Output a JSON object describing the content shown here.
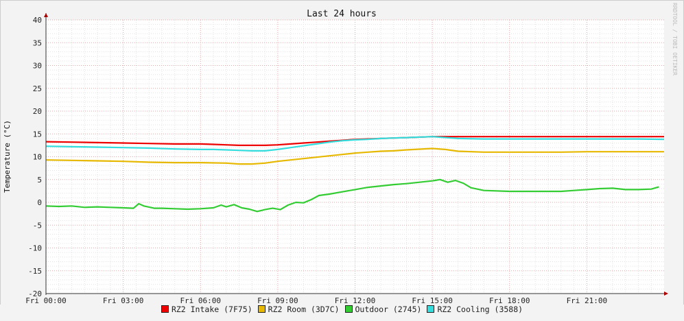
{
  "chart_data": {
    "type": "line",
    "title": "Last 24 hours",
    "ylabel": "Temperature (°C)",
    "xlabel": "",
    "ylim": [
      -20,
      40
    ],
    "y_ticks": [
      -20,
      -15,
      -10,
      -5,
      0,
      5,
      10,
      15,
      20,
      25,
      30,
      35,
      40
    ],
    "x_range_hours": [
      0,
      24
    ],
    "x_ticks": [
      {
        "hour": 0,
        "label": "Fri 00:00"
      },
      {
        "hour": 3,
        "label": "Fri 03:00"
      },
      {
        "hour": 6,
        "label": "Fri 06:00"
      },
      {
        "hour": 9,
        "label": "Fri 09:00"
      },
      {
        "hour": 12,
        "label": "Fri 12:00"
      },
      {
        "hour": 15,
        "label": "Fri 15:00"
      },
      {
        "hour": 18,
        "label": "Fri 18:00"
      },
      {
        "hour": 21,
        "label": "Fri 21:00"
      }
    ],
    "grid": true,
    "legend_position": "bottom",
    "credit": "RRDTOOL / TOBI OETIKER",
    "series": [
      {
        "name": "RZ2 Intake (7F75)",
        "color": "#ee0000",
        "x": [
          0,
          1,
          2,
          3,
          4,
          5,
          6,
          6.5,
          7,
          7.5,
          8,
          8.5,
          9,
          9.5,
          10,
          10.5,
          11,
          11.5,
          12,
          12.5,
          13,
          13.5,
          14,
          15,
          16,
          17,
          18,
          19,
          20,
          21,
          22,
          23,
          24
        ],
        "y": [
          13.3,
          13.2,
          13.1,
          13.0,
          12.9,
          12.8,
          12.8,
          12.7,
          12.6,
          12.5,
          12.5,
          12.5,
          12.6,
          12.8,
          13.0,
          13.2,
          13.4,
          13.6,
          13.8,
          13.9,
          14.0,
          14.1,
          14.2,
          14.4,
          14.4,
          14.4,
          14.4,
          14.4,
          14.4,
          14.4,
          14.4,
          14.4,
          14.4
        ]
      },
      {
        "name": "RZ2 Room (3D7C)",
        "color": "#e6b800",
        "x": [
          0,
          1,
          2,
          3,
          4,
          5,
          6,
          7,
          7.5,
          8,
          8.5,
          9,
          9.5,
          10,
          10.5,
          11,
          11.5,
          12,
          12.5,
          13,
          13.5,
          14,
          15,
          15.5,
          16,
          17,
          18,
          19,
          20,
          21,
          22,
          23,
          24
        ],
        "y": [
          9.3,
          9.2,
          9.1,
          9.0,
          8.8,
          8.7,
          8.7,
          8.6,
          8.4,
          8.4,
          8.6,
          9.0,
          9.3,
          9.6,
          9.9,
          10.2,
          10.5,
          10.8,
          11.0,
          11.2,
          11.3,
          11.5,
          11.8,
          11.6,
          11.2,
          11.0,
          11.0,
          11.0,
          11.0,
          11.1,
          11.1,
          11.1,
          11.1
        ]
      },
      {
        "name": "Outdoor (2745)",
        "color": "#33cc33",
        "x": [
          0,
          0.5,
          1,
          1.5,
          2,
          2.5,
          3,
          3.4,
          3.6,
          3.8,
          4.2,
          4.5,
          5,
          5.5,
          6,
          6.5,
          6.8,
          7,
          7.3,
          7.6,
          7.9,
          8.2,
          8.5,
          8.8,
          9.1,
          9.4,
          9.7,
          10,
          10.3,
          10.6,
          11,
          11.5,
          12,
          12.5,
          13,
          13.5,
          14,
          14.5,
          15,
          15.3,
          15.6,
          15.9,
          16.2,
          16.5,
          17,
          18,
          19,
          20,
          20.5,
          21,
          21.5,
          22,
          22.5,
          23,
          23.5,
          23.8
        ],
        "y": [
          -0.8,
          -0.9,
          -0.8,
          -1.1,
          -1.0,
          -1.1,
          -1.2,
          -1.3,
          -0.3,
          -0.8,
          -1.3,
          -1.3,
          -1.4,
          -1.5,
          -1.4,
          -1.2,
          -0.6,
          -1.0,
          -0.5,
          -1.2,
          -1.5,
          -2.0,
          -1.6,
          -1.3,
          -1.6,
          -0.6,
          0.0,
          -0.1,
          0.6,
          1.5,
          1.8,
          2.3,
          2.8,
          3.3,
          3.6,
          3.9,
          4.1,
          4.4,
          4.7,
          5.0,
          4.4,
          4.8,
          4.2,
          3.2,
          2.6,
          2.4,
          2.4,
          2.4,
          2.6,
          2.8,
          3.0,
          3.1,
          2.8,
          2.8,
          2.9,
          3.4
        ]
      },
      {
        "name": "RZ2 Cooling (3588)",
        "color": "#33dddd",
        "x": [
          0,
          1,
          2,
          3,
          4,
          5,
          6,
          6.5,
          7,
          7.5,
          8,
          8.5,
          9,
          9.5,
          10,
          10.5,
          11,
          11.5,
          12,
          12.5,
          13,
          13.5,
          14,
          15,
          16,
          17,
          18,
          19,
          20,
          21,
          22,
          23,
          24
        ],
        "y": [
          12.3,
          12.2,
          12.1,
          12.0,
          11.9,
          11.7,
          11.6,
          11.6,
          11.5,
          11.4,
          11.3,
          11.3,
          11.6,
          12.0,
          12.4,
          12.8,
          13.2,
          13.5,
          13.7,
          13.8,
          14.0,
          14.1,
          14.2,
          14.4,
          14.0,
          13.9,
          13.9,
          13.9,
          13.9,
          13.9,
          13.9,
          13.9,
          13.8
        ]
      }
    ]
  }
}
